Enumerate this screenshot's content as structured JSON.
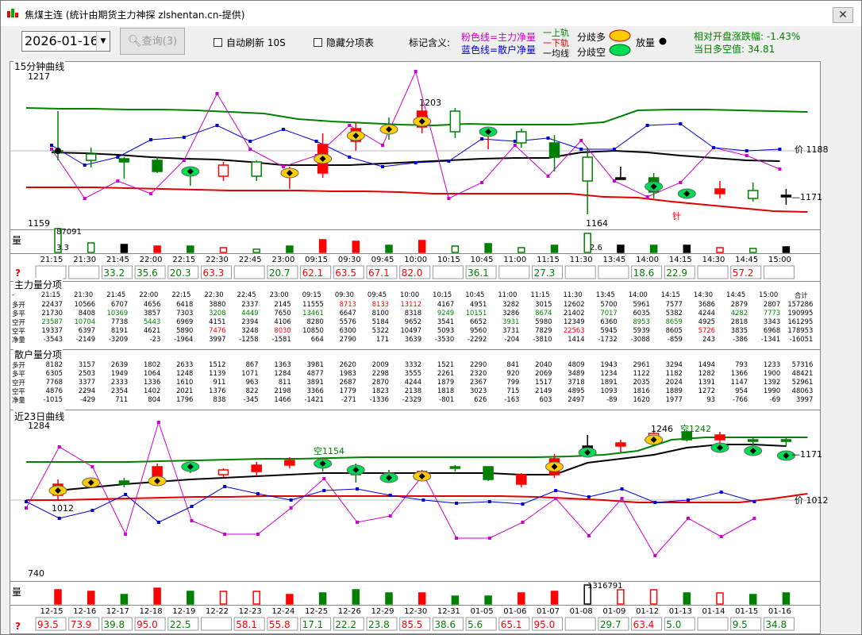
{
  "title": "焦煤主连 (统计由期货主力神探 zlshentan.cn-提供)",
  "close": "✕",
  "toolbar": {
    "date": "2026-01-16",
    "query_label": "查询(3)",
    "auto_refresh": "自动刷新 10S",
    "hide_items": "隐藏分项表",
    "legend_title": "标记含义:",
    "pink_line": "粉色线=主力净量",
    "blue_line": "蓝色线=散户净量",
    "up_rail": "一上轨",
    "down_rail": "一下轨",
    "avg_line": "一均线",
    "div_long": "分歧多",
    "div_short": "分歧空",
    "vol_label": "放量",
    "rel_change": "相对开盘涨跌幅: -1.43%",
    "day_value": "当日多空值: 34.81"
  },
  "colors": {
    "red": "#ff0000",
    "green": "#008000",
    "blue": "#0000cc",
    "pink": "#cc00cc",
    "up_rail": "#008000",
    "down_rail": "#e00000"
  },
  "top": {
    "title": "15分钟曲线",
    "max_label": "1217",
    "min_label": "1159",
    "peak_label": "1203",
    "low_label": "1164",
    "price_label": "价 1188",
    "last_label": "1171",
    "needle": "针",
    "vol_title": "量",
    "vol_peak": "87091",
    "vol_a": "3.3",
    "vol_b": "2.6",
    "question": "?",
    "times": [
      "21:15",
      "21:30",
      "21:45",
      "22:00",
      "22:15",
      "22:30",
      "22:45",
      "23:00",
      "09:15",
      "09:30",
      "09:45",
      "10:00",
      "10:15",
      "10:45",
      "11:00",
      "11:15",
      "11:30",
      "13:45",
      "14:00",
      "14:15",
      "14:30",
      "14:45",
      "15:00"
    ],
    "scores": [
      "",
      "",
      "33.2",
      "35.6",
      "20.3",
      "63.3",
      "",
      "20.7",
      "62.1",
      "63.5",
      "67.1",
      "82.0",
      "",
      "36.1",
      "",
      "27.3",
      "",
      "",
      "18.6",
      "22.9",
      "",
      "57.2",
      ""
    ]
  },
  "main": {
    "title": "主力量分项",
    "header": [
      "-",
      "21:15",
      "21:30",
      "21:45",
      "22:00",
      "22:15",
      "22:30",
      "22:45",
      "23:00",
      "09:15",
      "09:30",
      "09:45",
      "10:00",
      "10:15",
      "10:45",
      "11:00",
      "11:15",
      "11:30",
      "13:45",
      "14:00",
      "14:15",
      "14:30",
      "14:45",
      "15:00",
      "合计"
    ],
    "rows": [
      {
        "label": "多开",
        "values": [
          "22437",
          "10566",
          "6707",
          "4656",
          "6418",
          "3880",
          "2337",
          "2145",
          "11555",
          "8713",
          "8133",
          "13112",
          "4167",
          "4951",
          "3282",
          "3015",
          "12602",
          "5700",
          "5961",
          "7577",
          "3686",
          "2879",
          "2807",
          "157286"
        ]
      },
      {
        "label": "多平",
        "values": [
          "21730",
          "8408",
          "10369",
          "3857",
          "7303",
          "3208",
          "4449",
          "7650",
          "13461",
          "6647",
          "8100",
          "8318",
          "9249",
          "10151",
          "3286",
          "8674",
          "21402",
          "7017",
          "6035",
          "5382",
          "4244",
          "4282",
          "7773",
          "190995"
        ]
      },
      {
        "label": "空开",
        "values": [
          "23587",
          "10704",
          "7738",
          "5443",
          "6969",
          "4151",
          "2394",
          "4106",
          "8280",
          "5576",
          "5184",
          "9652",
          "3541",
          "6652",
          "3931",
          "5980",
          "12349",
          "6360",
          "8953",
          "8659",
          "4925",
          "2818",
          "3343",
          "161295"
        ]
      },
      {
        "label": "空平",
        "values": [
          "19337",
          "6397",
          "8191",
          "4621",
          "5890",
          "7476",
          "3248",
          "8030",
          "10850",
          "6300",
          "5322",
          "10497",
          "5093",
          "9560",
          "3731",
          "7829",
          "22563",
          "5945",
          "5939",
          "8605",
          "5726",
          "3835",
          "6968",
          "178953"
        ]
      },
      {
        "label": "净量",
        "values": [
          "-3543",
          "-2149",
          "-3209",
          "-23",
          "-1964",
          "3997",
          "-1258",
          "-1581",
          "664",
          "2790",
          "171",
          "3639",
          "-3530",
          "-2292",
          "-204",
          "-3810",
          "1414",
          "-1732",
          "-3088",
          "-859",
          "243",
          "-386",
          "-1341",
          "-16051"
        ]
      }
    ]
  },
  "retail": {
    "title": "散户量分项",
    "rows": [
      {
        "label": "多开",
        "values": [
          "8182",
          "3157",
          "2639",
          "1802",
          "2633",
          "1512",
          "867",
          "1363",
          "3981",
          "2620",
          "2009",
          "3332",
          "1521",
          "2290",
          "841",
          "2040",
          "4809",
          "1943",
          "2961",
          "3294",
          "1494",
          "793",
          "1233",
          "57316"
        ]
      },
      {
        "label": "多平",
        "values": [
          "6305",
          "2503",
          "1949",
          "1064",
          "1248",
          "1139",
          "1071",
          "1284",
          "4877",
          "1983",
          "2298",
          "3555",
          "2261",
          "2320",
          "920",
          "2069",
          "3489",
          "1234",
          "1122",
          "1182",
          "1282",
          "1366",
          "1900",
          "48421"
        ]
      },
      {
        "label": "空开",
        "values": [
          "7768",
          "3377",
          "2333",
          "1336",
          "1610",
          "911",
          "963",
          "811",
          "3891",
          "2687",
          "2870",
          "4244",
          "1879",
          "2367",
          "799",
          "1517",
          "3718",
          "1891",
          "2035",
          "2024",
          "1391",
          "1147",
          "1392",
          "52961"
        ]
      },
      {
        "label": "空平",
        "values": [
          "4876",
          "2294",
          "2354",
          "1402",
          "2021",
          "1376",
          "822",
          "2198",
          "3366",
          "1779",
          "1823",
          "2138",
          "1818",
          "3023",
          "715",
          "2149",
          "4895",
          "1093",
          "1816",
          "1889",
          "1272",
          "954",
          "1990",
          "48063"
        ]
      },
      {
        "label": "净量",
        "values": [
          "-1015",
          "-429",
          "711",
          "804",
          "1796",
          "838",
          "-345",
          "1466",
          "-1421",
          "-271",
          "-1336",
          "-2329",
          "-801",
          "626",
          "-163",
          "603",
          "2497",
          "-89",
          "1620",
          "1977",
          "93",
          "-766",
          "-69",
          "3997"
        ]
      }
    ]
  },
  "bottom": {
    "title": "近23日曲线",
    "max_label": "1284",
    "min_label": "740",
    "first_label": "1012",
    "k_label": "空1154",
    "peak_label": "1246",
    "k2_label": "空1242",
    "last_label": "1171",
    "price_label": "价 1012",
    "vol_title": "量",
    "vol_peak": "1316791",
    "question": "?",
    "dates": [
      "12-15",
      "12-16",
      "12-17",
      "12-18",
      "12-19",
      "12-22",
      "12-23",
      "12-24",
      "12-25",
      "12-26",
      "12-29",
      "12-30",
      "12-31",
      "01-05",
      "01-06",
      "01-07",
      "01-08",
      "01-09",
      "01-12",
      "01-13",
      "01-14",
      "01-15",
      "01-16"
    ],
    "scores": [
      "93.5",
      "73.9",
      "39.8",
      "95.0",
      "22.5",
      "",
      "58.1",
      "55.8",
      "17.1",
      "22.2",
      "23.8",
      "85.5",
      "38.6",
      "5.6",
      "65.1",
      "95.0",
      "",
      "29.7",
      "63.4",
      "5.0",
      "",
      "9.5",
      "34.8"
    ]
  }
}
